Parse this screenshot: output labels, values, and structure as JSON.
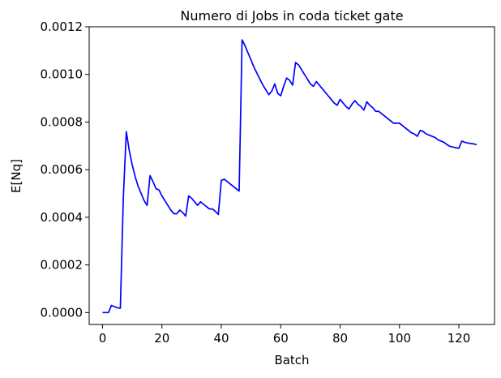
{
  "chart_data": {
    "type": "line",
    "title": "Numero di Jobs in coda ticket gate",
    "xlabel": "Batch",
    "ylabel": "E[Nq]",
    "xlim": [
      -4.5,
      132
    ],
    "ylim": [
      -5e-05,
      0.0012
    ],
    "x_ticks": [
      0,
      20,
      40,
      60,
      80,
      100,
      120
    ],
    "y_ticks": [
      0.0,
      0.0002,
      0.0004,
      0.0006,
      0.0008,
      0.001,
      0.0012
    ],
    "x_tick_labels": [
      "0",
      "20",
      "40",
      "60",
      "80",
      "100",
      "120"
    ],
    "y_tick_labels": [
      "0.0000",
      "0.0002",
      "0.0004",
      "0.0006",
      "0.0008",
      "0.0010",
      "0.0012"
    ],
    "grid": false,
    "series": [
      {
        "color": "#0000ff",
        "x": [
          0,
          1,
          2,
          3,
          4,
          5,
          6,
          7,
          8,
          9,
          10,
          11,
          12,
          13,
          14,
          15,
          16,
          17,
          18,
          19,
          20,
          21,
          22,
          23,
          24,
          25,
          26,
          27,
          28,
          29,
          30,
          31,
          32,
          33,
          34,
          35,
          36,
          37,
          38,
          39,
          40,
          41,
          42,
          43,
          44,
          45,
          46,
          47,
          48,
          49,
          50,
          51,
          52,
          53,
          54,
          55,
          56,
          57,
          58,
          59,
          60,
          61,
          62,
          63,
          64,
          65,
          66,
          67,
          68,
          69,
          70,
          71,
          72,
          73,
          74,
          75,
          76,
          77,
          78,
          79,
          80,
          81,
          82,
          83,
          84,
          85,
          86,
          87,
          88,
          89,
          90,
          91,
          92,
          93,
          94,
          95,
          96,
          97,
          98,
          99,
          100,
          101,
          102,
          103,
          104,
          105,
          106,
          107,
          108,
          109,
          110,
          111,
          112,
          113,
          114,
          115,
          116,
          117,
          118,
          119,
          120,
          121,
          122,
          123,
          124,
          125,
          126
        ],
        "y": [
          0,
          0,
          0,
          3e-05,
          2.5e-05,
          2e-05,
          1.8e-05,
          0.00048,
          0.00076,
          0.00068,
          0.00062,
          0.00057,
          0.00053,
          0.0005,
          0.00047,
          0.00045,
          0.000575,
          0.00055,
          0.00052,
          0.000515,
          0.00049,
          0.00047,
          0.00045,
          0.00043,
          0.000415,
          0.000415,
          0.00043,
          0.00042,
          0.000405,
          0.00049,
          0.00048,
          0.000465,
          0.00045,
          0.000465,
          0.000455,
          0.000445,
          0.000435,
          0.000435,
          0.000425,
          0.000412,
          0.000555,
          0.00056,
          0.00055,
          0.00054,
          0.00053,
          0.00052,
          0.00051,
          0.001145,
          0.00112,
          0.00109,
          0.00106,
          0.00103,
          0.001005,
          0.00098,
          0.000955,
          0.000935,
          0.000915,
          0.00093,
          0.00096,
          0.00092,
          0.00091,
          0.00095,
          0.000985,
          0.000975,
          0.000955,
          0.00105,
          0.00104,
          0.00102,
          0.001,
          0.00098,
          0.00096,
          0.00095,
          0.00097,
          0.000955,
          0.00094,
          0.000925,
          0.00091,
          0.000895,
          0.00088,
          0.00087,
          0.000895,
          0.00088,
          0.000865,
          0.000855,
          0.000875,
          0.00089,
          0.000875,
          0.000865,
          0.00085,
          0.000885,
          0.00087,
          0.00086,
          0.000845,
          0.000845,
          0.000835,
          0.000825,
          0.000815,
          0.000805,
          0.000795,
          0.000795,
          0.000795,
          0.000785,
          0.000775,
          0.000765,
          0.000755,
          0.00075,
          0.00074,
          0.000765,
          0.00076,
          0.00075,
          0.000745,
          0.00074,
          0.000735,
          0.000725,
          0.00072,
          0.000715,
          0.000705,
          0.000698,
          0.000695,
          0.000692,
          0.00069,
          0.00072,
          0.000715,
          0.000712,
          0.00071,
          0.000708,
          0.000705
        ]
      }
    ]
  }
}
